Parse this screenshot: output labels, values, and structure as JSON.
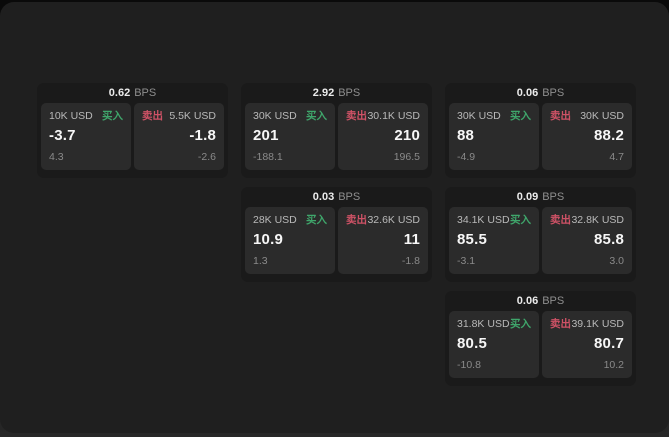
{
  "labels": {
    "bps_unit": "BPS",
    "buy": "买入",
    "sell": "卖出"
  },
  "colors": {
    "buy_green": "#3fa66b",
    "sell_red": "#cf5266",
    "window_bg": "#1f1f1f",
    "card_bg": "#1a1a1a",
    "panel_bg": "#2b2b2b"
  },
  "cards": [
    {
      "bps": "0.62",
      "buy": {
        "amount": "10K USD",
        "price": "-3.7",
        "change": "4.3"
      },
      "sell": {
        "amount": "5.5K USD",
        "price": "-1.8",
        "change": "-2.6"
      }
    },
    {
      "bps": "2.92",
      "buy": {
        "amount": "30K USD",
        "price": "201",
        "change": "-188.1"
      },
      "sell": {
        "amount": "30.1K USD",
        "price": "210",
        "change": "196.5"
      }
    },
    {
      "bps": "0.06",
      "buy": {
        "amount": "30K USD",
        "price": "88",
        "change": "-4.9"
      },
      "sell": {
        "amount": "30K USD",
        "price": "88.2",
        "change": "4.7"
      }
    },
    {
      "bps": "0.03",
      "buy": {
        "amount": "28K USD",
        "price": "10.9",
        "change": "1.3"
      },
      "sell": {
        "amount": "32.6K USD",
        "price": "11",
        "change": "-1.8"
      }
    },
    {
      "bps": "0.09",
      "buy": {
        "amount": "34.1K USD",
        "price": "85.5",
        "change": "-3.1"
      },
      "sell": {
        "amount": "32.8K USD",
        "price": "85.8",
        "change": "3.0"
      }
    },
    {
      "bps": "0.06",
      "buy": {
        "amount": "31.8K USD",
        "price": "80.5",
        "change": "-10.8"
      },
      "sell": {
        "amount": "39.1K USD",
        "price": "80.7",
        "change": "10.2"
      }
    }
  ]
}
